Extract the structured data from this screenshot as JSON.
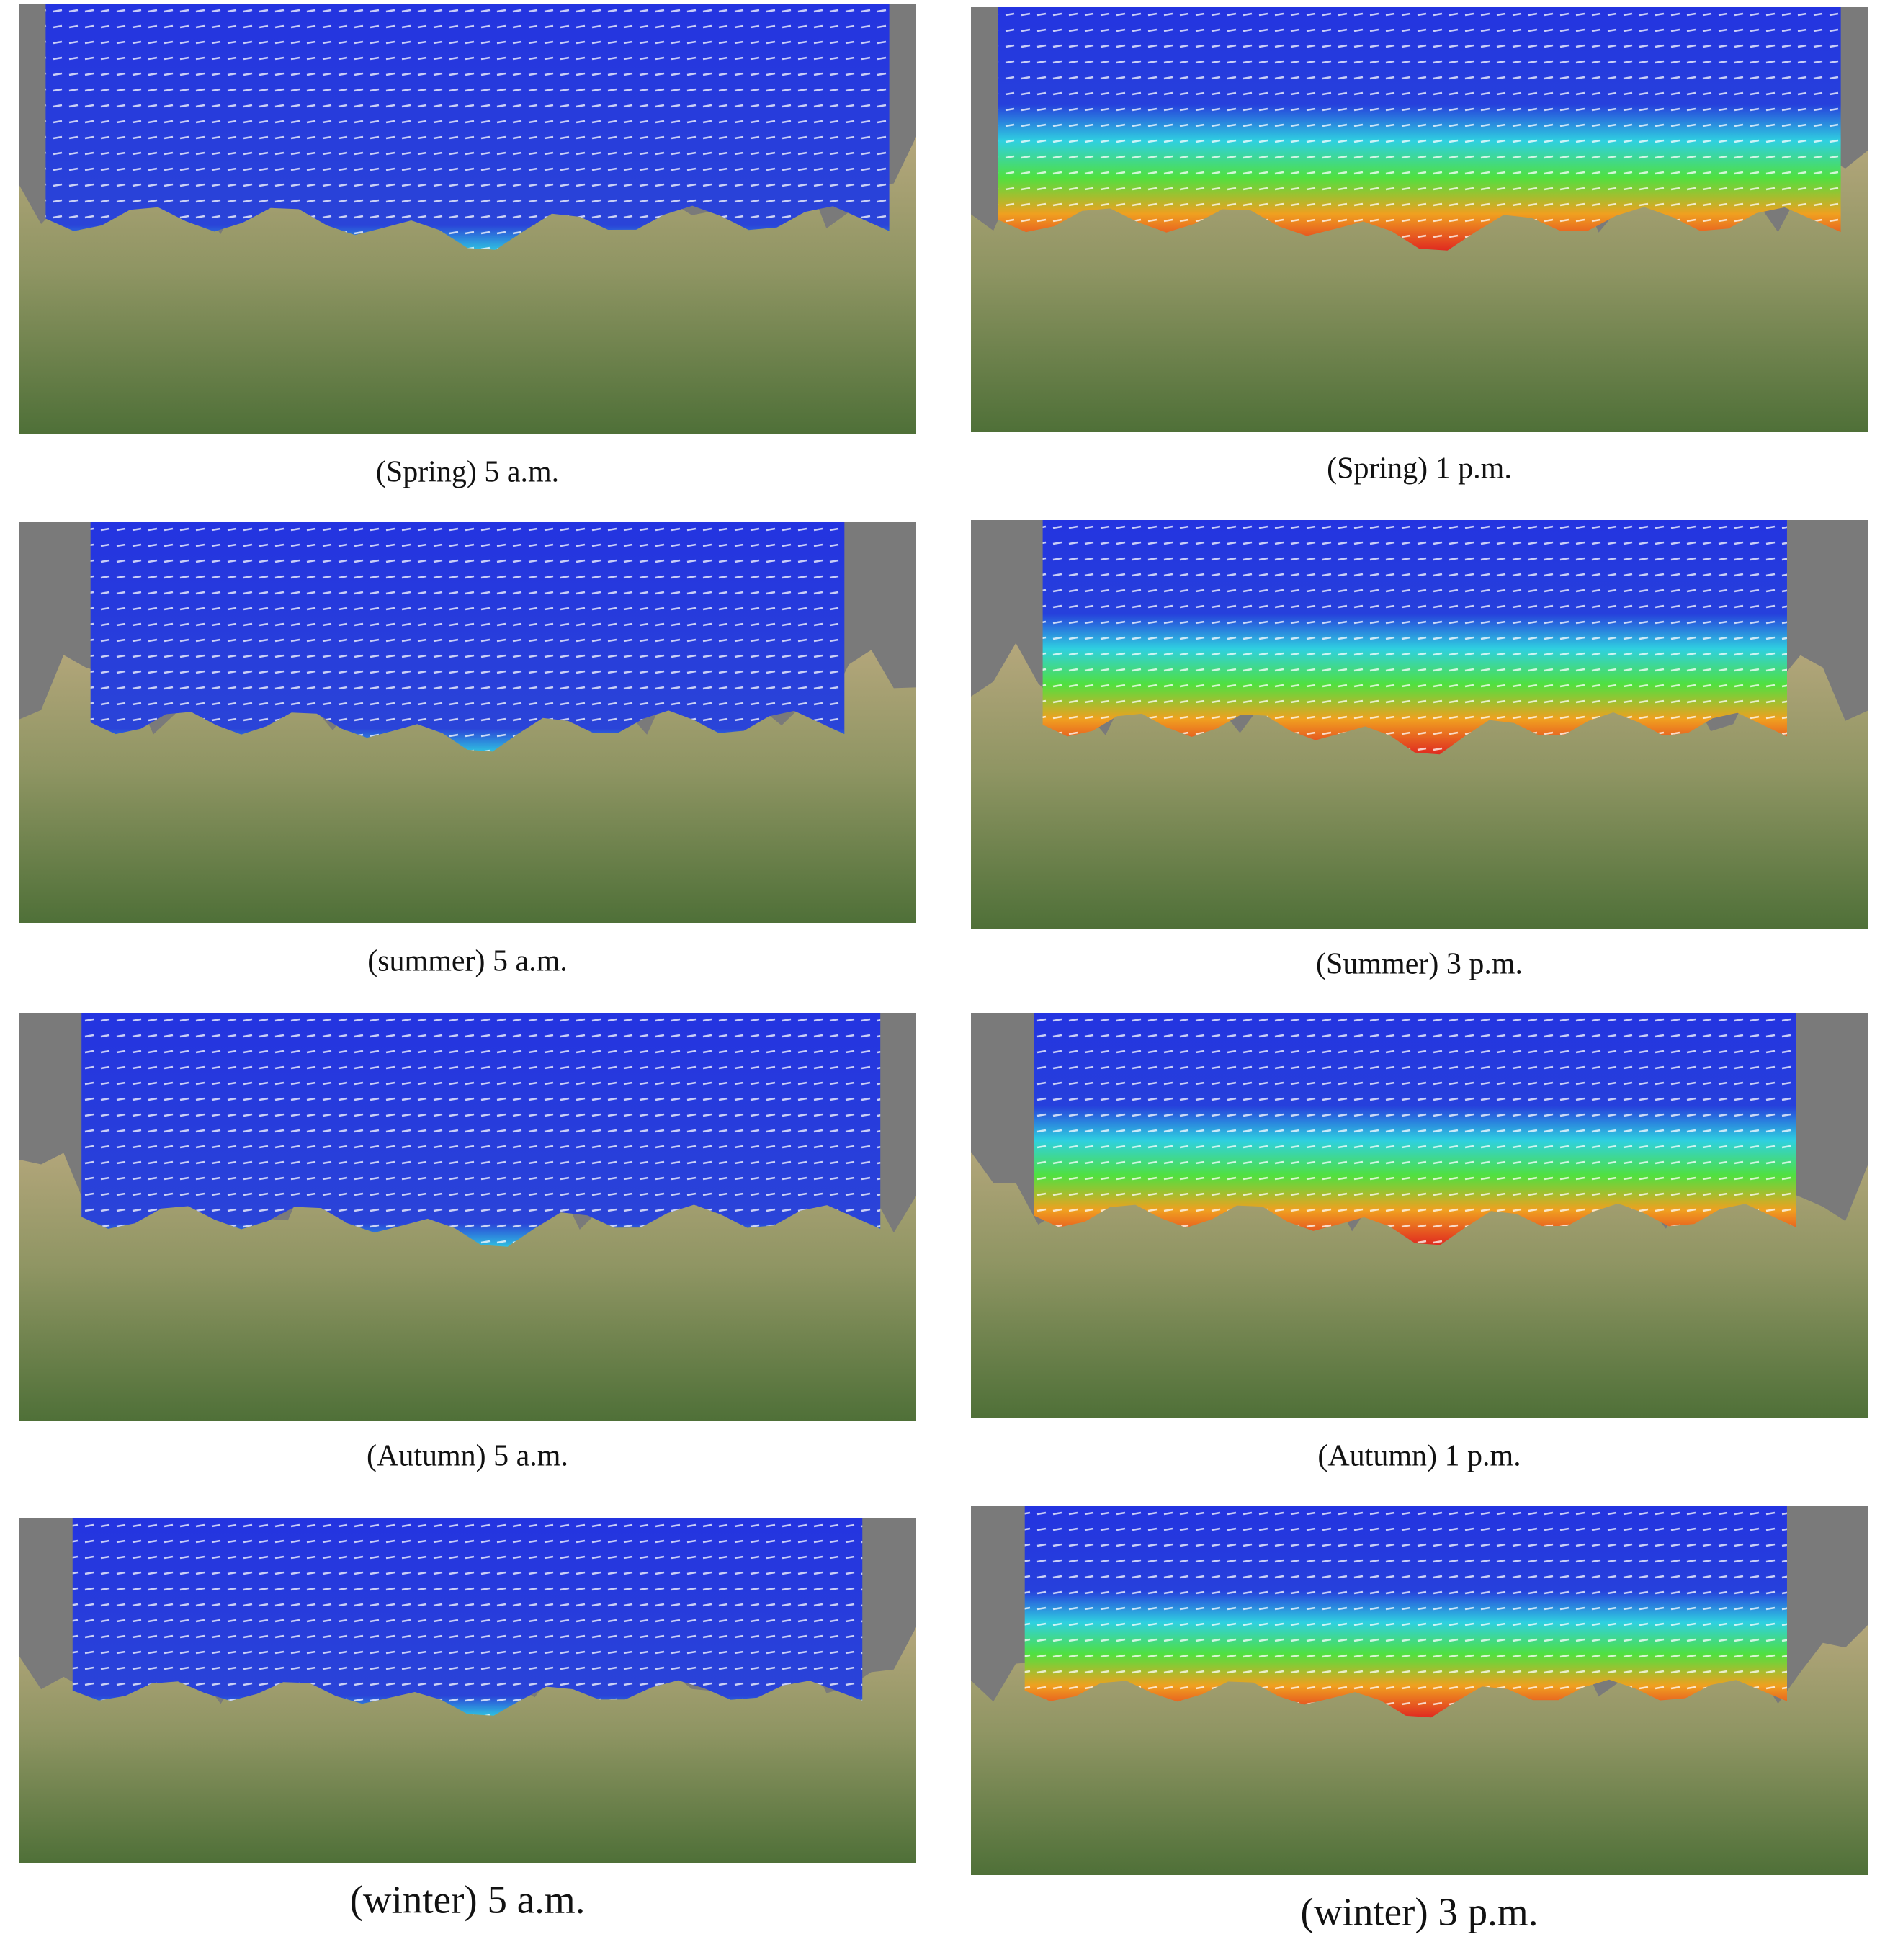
{
  "panels": [
    {
      "caption": "(Spring) 5 a.m."
    },
    {
      "caption": "(Spring) 1 p.m."
    },
    {
      "caption": "(summer) 5 a.m."
    },
    {
      "caption": "(Summer) 3 p.m."
    },
    {
      "caption": "(Autumn) 5 a.m."
    },
    {
      "caption": "(Autumn) 1 p.m."
    },
    {
      "caption": "(winter) 5 a.m."
    },
    {
      "caption": "(winter) 3 p.m."
    }
  ]
}
